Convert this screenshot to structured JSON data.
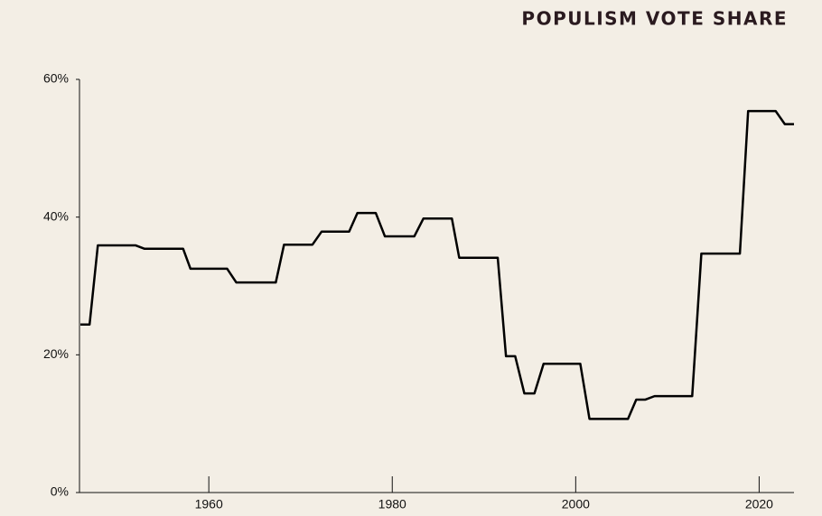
{
  "chart_data": {
    "type": "line",
    "title": "POPULISM VOTE SHARE",
    "x": [
      1946,
      1947,
      1947.9,
      1952,
      1953,
      1957.2,
      1958,
      1962,
      1963,
      1967.3,
      1968.2,
      1971.3,
      1972.3,
      1975.3,
      1976.2,
      1978.2,
      1979.2,
      1982.4,
      1983.4,
      1986.5,
      1987.3,
      1991.5,
      1992.4,
      1993.4,
      1994.4,
      1995.5,
      1996.5,
      2000.5,
      2001.5,
      2005.7,
      2006.6,
      2007.6,
      2008.6,
      2012.7,
      2013.7,
      2017.9,
      2018.8,
      2021.8,
      2022.8,
      2023.8
    ],
    "series": [
      {
        "name": "Populism vote share",
        "color": "#000000",
        "values": [
          24.4,
          24.4,
          35.9,
          35.9,
          35.4,
          35.4,
          32.5,
          32.5,
          30.5,
          30.5,
          36.0,
          36.0,
          37.9,
          37.9,
          40.6,
          40.6,
          37.2,
          37.2,
          39.8,
          39.8,
          34.1,
          34.1,
          19.8,
          19.8,
          14.4,
          14.4,
          18.7,
          18.7,
          10.7,
          10.7,
          13.5,
          13.5,
          14.0,
          14.0,
          34.7,
          34.7,
          55.4,
          55.4,
          53.5,
          53.5
        ]
      }
    ],
    "xlim": [
      1945.9,
      2023.8
    ],
    "xticks": [
      1960,
      1980,
      2000,
      2020
    ],
    "ylim": [
      0,
      60
    ],
    "yticks": [
      {
        "value": 0,
        "label": "0%"
      },
      {
        "value": 20,
        "label": "20%"
      },
      {
        "value": 40,
        "label": "40%"
      },
      {
        "value": 60,
        "label": "60%"
      }
    ]
  }
}
